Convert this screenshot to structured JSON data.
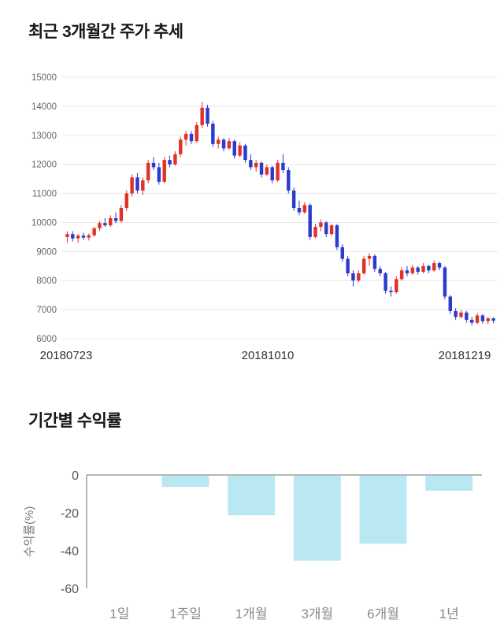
{
  "titles": {
    "price_trend": "최근 3개월간 주가 추세",
    "period_returns": "기간별 수익률"
  },
  "chart_data": [
    {
      "type": "candlestick",
      "title": "최근 3개월간 주가 추세",
      "ylim": [
        6000,
        15000
      ],
      "yticks": [
        15000,
        14000,
        13000,
        12000,
        11000,
        10000,
        9000,
        8000,
        7000,
        6000
      ],
      "x_labels": [
        "20180723",
        "20181010",
        "20181219"
      ],
      "colors": {
        "up": "#e0322a",
        "down": "#2b3ccc",
        "grid": "#e8e8e8",
        "tick_text": "#666666",
        "date_text": "#333333"
      },
      "candles": [
        [
          9500,
          9700,
          9300,
          9600
        ],
        [
          9600,
          9700,
          9350,
          9450
        ],
        [
          9450,
          9600,
          9300,
          9550
        ],
        [
          9550,
          9650,
          9400,
          9480
        ],
        [
          9480,
          9620,
          9380,
          9560
        ],
        [
          9560,
          9850,
          9500,
          9800
        ],
        [
          9800,
          10050,
          9700,
          9980
        ],
        [
          9980,
          10150,
          9850,
          9900
        ],
        [
          9900,
          10250,
          9850,
          10150
        ],
        [
          10150,
          10350,
          9980,
          10050
        ],
        [
          10050,
          10600,
          10000,
          10500
        ],
        [
          10500,
          11100,
          10400,
          11000
        ],
        [
          11000,
          11650,
          10900,
          11550
        ],
        [
          11550,
          11700,
          11000,
          11100
        ],
        [
          11100,
          11550,
          10950,
          11450
        ],
        [
          11450,
          12150,
          11350,
          12050
        ],
        [
          12050,
          12250,
          11800,
          11900
        ],
        [
          11900,
          12050,
          11300,
          11400
        ],
        [
          11400,
          12250,
          11350,
          12150
        ],
        [
          12150,
          12300,
          11900,
          12000
        ],
        [
          12000,
          12450,
          11950,
          12350
        ],
        [
          12350,
          12950,
          12250,
          12850
        ],
        [
          12850,
          13150,
          12650,
          13050
        ],
        [
          13050,
          13150,
          12700,
          12800
        ],
        [
          12800,
          13450,
          12750,
          13350
        ],
        [
          13350,
          14150,
          13250,
          13950
        ],
        [
          13950,
          14050,
          13300,
          13400
        ],
        [
          13400,
          13500,
          12600,
          12700
        ],
        [
          12700,
          12950,
          12550,
          12850
        ],
        [
          12850,
          12900,
          12450,
          12550
        ],
        [
          12550,
          12900,
          12500,
          12800
        ],
        [
          12800,
          12850,
          12200,
          12300
        ],
        [
          12300,
          12750,
          12250,
          12650
        ],
        [
          12650,
          12700,
          12050,
          12150
        ],
        [
          12150,
          12350,
          11800,
          11900
        ],
        [
          11900,
          12150,
          11750,
          12050
        ],
        [
          12050,
          12100,
          11550,
          11650
        ],
        [
          11650,
          12000,
          11600,
          11900
        ],
        [
          11900,
          11950,
          11350,
          11450
        ],
        [
          11450,
          12150,
          11400,
          12050
        ],
        [
          12050,
          12350,
          11700,
          11800
        ],
        [
          11800,
          11900,
          11000,
          11100
        ],
        [
          11100,
          11200,
          10400,
          10500
        ],
        [
          10500,
          10750,
          10250,
          10350
        ],
        [
          10350,
          10700,
          10300,
          10600
        ],
        [
          10600,
          10650,
          9400,
          9500
        ],
        [
          9500,
          9950,
          9450,
          9850
        ],
        [
          9850,
          10100,
          9700,
          10000
        ],
        [
          10000,
          10050,
          9500,
          9600
        ],
        [
          9600,
          9950,
          9550,
          9900
        ],
        [
          9900,
          9950,
          9050,
          9150
        ],
        [
          9150,
          9250,
          8650,
          8750
        ],
        [
          8750,
          8850,
          8150,
          8250
        ],
        [
          8250,
          8350,
          7800,
          8000
        ],
        [
          8000,
          8350,
          7950,
          8250
        ],
        [
          8250,
          8850,
          8200,
          8750
        ],
        [
          8750,
          8950,
          8500,
          8850
        ],
        [
          8850,
          8900,
          8300,
          8400
        ],
        [
          8400,
          8500,
          8150,
          8250
        ],
        [
          8250,
          8300,
          7550,
          7650
        ],
        [
          7650,
          7800,
          7450,
          7600
        ],
        [
          7600,
          8150,
          7550,
          8050
        ],
        [
          8050,
          8450,
          8000,
          8350
        ],
        [
          8350,
          8500,
          8150,
          8250
        ],
        [
          8250,
          8550,
          8200,
          8450
        ],
        [
          8450,
          8500,
          8200,
          8300
        ],
        [
          8300,
          8600,
          8250,
          8500
        ],
        [
          8500,
          8550,
          8250,
          8350
        ],
        [
          8350,
          8700,
          8300,
          8600
        ],
        [
          8600,
          8650,
          8350,
          8450
        ],
        [
          8450,
          8500,
          7350,
          7450
        ],
        [
          7450,
          7500,
          6850,
          6950
        ],
        [
          6950,
          7050,
          6650,
          6750
        ],
        [
          6750,
          6980,
          6700,
          6900
        ],
        [
          6900,
          6950,
          6550,
          6650
        ],
        [
          6650,
          6750,
          6450,
          6550
        ],
        [
          6550,
          6880,
          6500,
          6800
        ],
        [
          6800,
          6850,
          6520,
          6600
        ],
        [
          6600,
          6750,
          6500,
          6700
        ],
        [
          6700,
          6730,
          6530,
          6620
        ]
      ]
    },
    {
      "type": "bar",
      "title": "기간별 수익률",
      "categories": [
        "1일",
        "1주일",
        "1개월",
        "3개월",
        "6개월",
        "1년"
      ],
      "values": [
        0,
        -6,
        -21,
        -45,
        -36,
        -8
      ],
      "ylabel": "수익률(%)",
      "yticks": [
        0,
        -20,
        -40,
        -60
      ],
      "ylim": [
        -60,
        0
      ],
      "bar_color": "#b9e8f3",
      "axis_color": "#9e9e9e",
      "tick_text_color": "#555555",
      "category_text_color": "#8a8a8a",
      "ylabel_color": "#777777"
    }
  ]
}
